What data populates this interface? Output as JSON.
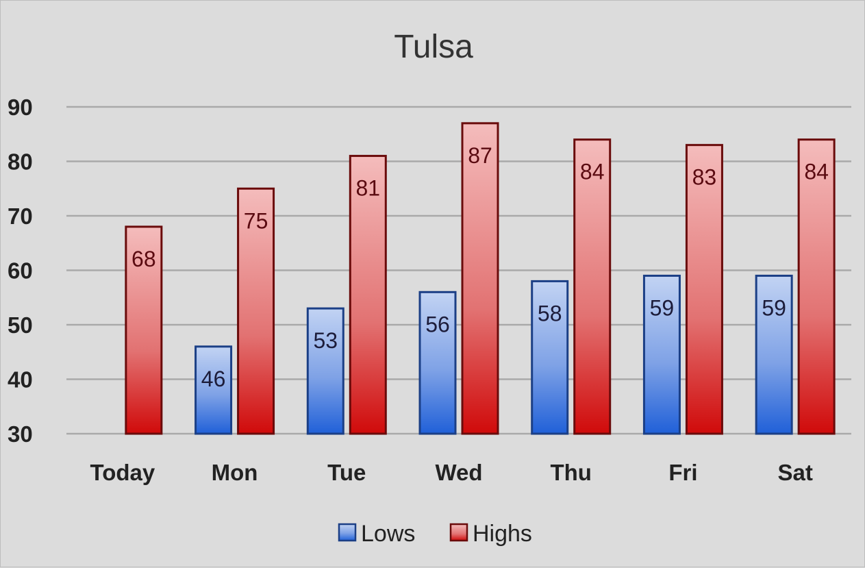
{
  "chart_data": {
    "type": "bar",
    "title": "Tulsa",
    "categories": [
      "Today",
      "Mon",
      "Tue",
      "Wed",
      "Thu",
      "Fri",
      "Sat"
    ],
    "series": [
      {
        "name": "Lows",
        "values": [
          null,
          46,
          53,
          56,
          58,
          59,
          59
        ],
        "color": "#3d6fd0"
      },
      {
        "name": "Highs",
        "values": [
          68,
          75,
          81,
          87,
          84,
          83,
          84
        ],
        "color": "#d42a2a"
      }
    ],
    "ylim": [
      30,
      90
    ],
    "yticks": [
      30,
      40,
      50,
      60,
      70,
      80,
      90
    ],
    "grid": true,
    "legend": "bottom",
    "data_labels": true
  }
}
